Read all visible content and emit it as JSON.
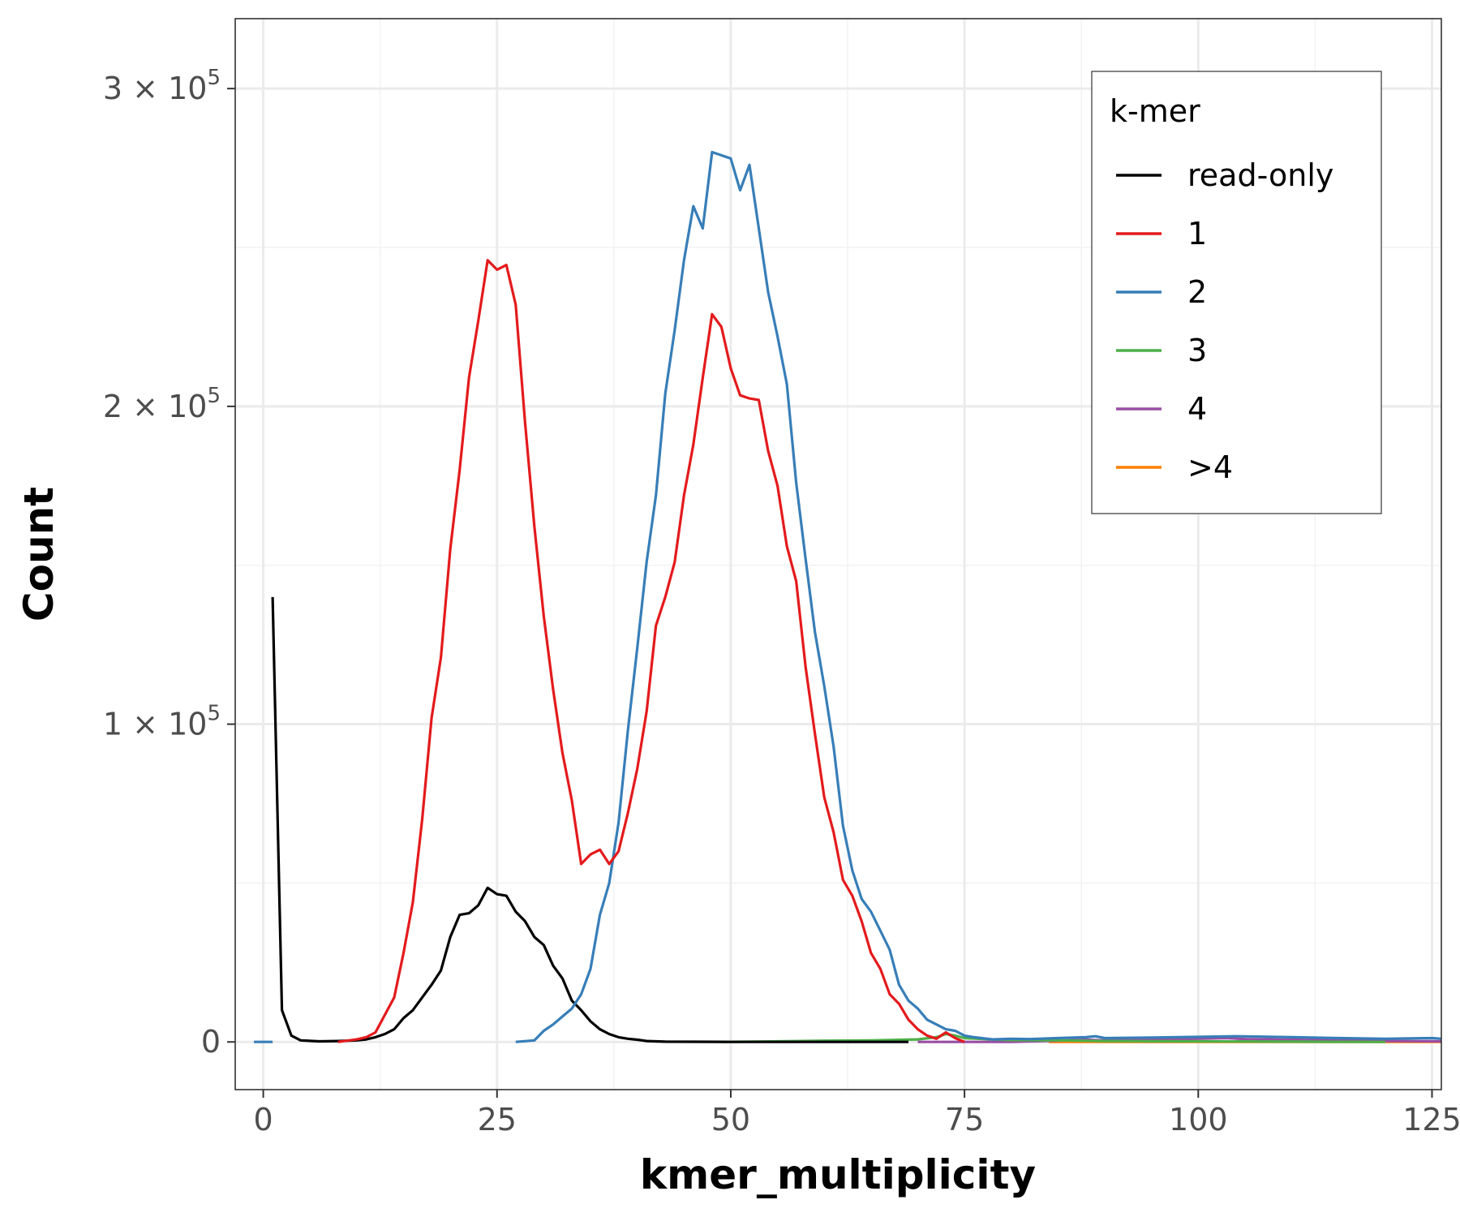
{
  "chart_data": {
    "type": "line",
    "title": "",
    "xlabel": "kmer_multiplicity",
    "ylabel": "Count",
    "xlim": [
      -3,
      126
    ],
    "ylim": [
      -15000,
      322000
    ],
    "x_ticks": [
      0,
      25,
      50,
      75,
      100,
      125
    ],
    "y_ticks": [
      {
        "value": 0,
        "mantissa": "0",
        "exponent": ""
      },
      {
        "value": 100000,
        "mantissa": "1 × 10",
        "exponent": "5"
      },
      {
        "value": 200000,
        "mantissa": "2 × 10",
        "exponent": "5"
      },
      {
        "value": 300000,
        "mantissa": "3 × 10",
        "exponent": "5"
      }
    ],
    "grid": true,
    "legend": {
      "title": "k-mer",
      "position": "top-right",
      "entries": [
        "read-only",
        "1",
        "2",
        "3",
        "4",
        ">4"
      ]
    },
    "series": [
      {
        "name": "read-only",
        "color": "#000000",
        "points": [
          [
            1,
            140000
          ],
          [
            2,
            10000
          ],
          [
            3,
            2000
          ],
          [
            4,
            500
          ],
          [
            6,
            200
          ],
          [
            8,
            300
          ],
          [
            10,
            500
          ],
          [
            11,
            800
          ],
          [
            12,
            1500
          ],
          [
            13,
            2500
          ],
          [
            14,
            4000
          ],
          [
            15,
            7500
          ],
          [
            16,
            10000
          ],
          [
            17,
            14000
          ],
          [
            18,
            18000
          ],
          [
            19,
            22500
          ],
          [
            20,
            33000
          ],
          [
            21,
            40000
          ],
          [
            22,
            40500
          ],
          [
            23,
            43000
          ],
          [
            24,
            48500
          ],
          [
            25,
            46500
          ],
          [
            26,
            46000
          ],
          [
            27,
            41000
          ],
          [
            28,
            38000
          ],
          [
            29,
            33000
          ],
          [
            30,
            30500
          ],
          [
            31,
            24000
          ],
          [
            32,
            20000
          ],
          [
            33,
            13000
          ],
          [
            34,
            10000
          ],
          [
            35,
            6500
          ],
          [
            36,
            4000
          ],
          [
            37,
            2500
          ],
          [
            38,
            1500
          ],
          [
            39,
            1000
          ],
          [
            40,
            700
          ],
          [
            41,
            300
          ],
          [
            43,
            100
          ],
          [
            50,
            0
          ],
          [
            60,
            0
          ],
          [
            69,
            0
          ]
        ]
      },
      {
        "name": "1",
        "color": "#e41a1c",
        "points": [
          [
            8,
            0
          ],
          [
            10,
            800
          ],
          [
            11,
            1500
          ],
          [
            12,
            3000
          ],
          [
            13,
            8500
          ],
          [
            14,
            14000
          ],
          [
            15,
            28000
          ],
          [
            16,
            44000
          ],
          [
            17,
            70000
          ],
          [
            18,
            102000
          ],
          [
            19,
            121000
          ],
          [
            20,
            155000
          ],
          [
            21,
            180000
          ],
          [
            22,
            209000
          ],
          [
            23,
            227000
          ],
          [
            24,
            246000
          ],
          [
            25,
            243000
          ],
          [
            26,
            244500
          ],
          [
            27,
            232000
          ],
          [
            28,
            195000
          ],
          [
            29,
            162000
          ],
          [
            30,
            134000
          ],
          [
            31,
            111000
          ],
          [
            32,
            91000
          ],
          [
            33,
            76000
          ],
          [
            34,
            56000
          ],
          [
            35,
            59000
          ],
          [
            36,
            60500
          ],
          [
            37,
            56000
          ],
          [
            38,
            60000
          ],
          [
            39,
            72000
          ],
          [
            40,
            86000
          ],
          [
            41,
            104000
          ],
          [
            42,
            131000
          ],
          [
            43,
            140000
          ],
          [
            44,
            151000
          ],
          [
            45,
            172000
          ],
          [
            46,
            188000
          ],
          [
            47,
            209000
          ],
          [
            48,
            229000
          ],
          [
            49,
            225000
          ],
          [
            50,
            212000
          ],
          [
            51,
            203500
          ],
          [
            52,
            202500
          ],
          [
            53,
            202000
          ],
          [
            54,
            186000
          ],
          [
            55,
            175000
          ],
          [
            56,
            156000
          ],
          [
            57,
            145000
          ],
          [
            58,
            118000
          ],
          [
            59,
            97000
          ],
          [
            60,
            77000
          ],
          [
            61,
            66000
          ],
          [
            62,
            51000
          ],
          [
            63,
            46000
          ],
          [
            64,
            38000
          ],
          [
            65,
            28000
          ],
          [
            66,
            23000
          ],
          [
            67,
            15000
          ],
          [
            68,
            12000
          ],
          [
            69,
            7000
          ],
          [
            70,
            4000
          ],
          [
            71,
            2000
          ],
          [
            72,
            1000
          ],
          [
            73,
            3000
          ],
          [
            74,
            1200
          ],
          [
            75,
            0
          ]
        ]
      },
      {
        "name": "2",
        "color": "#377eb8",
        "points": [
          [
            -1,
            0
          ],
          [
            1,
            0
          ]
        ],
        "points2": [
          [
            27,
            0
          ],
          [
            29,
            500
          ],
          [
            30,
            3500
          ],
          [
            31,
            5500
          ],
          [
            32,
            8000
          ],
          [
            33,
            10500
          ],
          [
            34,
            15000
          ],
          [
            35,
            23000
          ],
          [
            36,
            40000
          ],
          [
            37,
            50000
          ],
          [
            38,
            69000
          ],
          [
            39,
            98000
          ],
          [
            40,
            124000
          ],
          [
            41,
            151000
          ],
          [
            42,
            172000
          ],
          [
            43,
            204000
          ],
          [
            44,
            224000
          ],
          [
            45,
            246000
          ],
          [
            46,
            263000
          ],
          [
            47,
            256000
          ],
          [
            48,
            280000
          ],
          [
            49,
            279000
          ],
          [
            50,
            278000
          ],
          [
            51,
            268000
          ],
          [
            52,
            276000
          ],
          [
            53,
            256000
          ],
          [
            54,
            236000
          ],
          [
            55,
            222000
          ],
          [
            56,
            207000
          ],
          [
            57,
            176000
          ],
          [
            58,
            152000
          ],
          [
            59,
            129000
          ],
          [
            60,
            112000
          ],
          [
            61,
            93000
          ],
          [
            62,
            68000
          ],
          [
            63,
            54000
          ],
          [
            64,
            45000
          ],
          [
            65,
            41000
          ],
          [
            66,
            35000
          ],
          [
            67,
            29000
          ],
          [
            68,
            18000
          ],
          [
            69,
            13000
          ],
          [
            70,
            10500
          ],
          [
            71,
            7000
          ],
          [
            72,
            5500
          ],
          [
            73,
            4000
          ],
          [
            74,
            3500
          ],
          [
            75,
            2000
          ],
          [
            76,
            1500
          ],
          [
            78,
            800
          ],
          [
            80,
            1000
          ],
          [
            82,
            900
          ],
          [
            85,
            1200
          ],
          [
            88,
            1500
          ],
          [
            89,
            1800
          ],
          [
            90,
            1200
          ],
          [
            95,
            1400
          ],
          [
            100,
            1600
          ],
          [
            104,
            1800
          ],
          [
            110,
            1500
          ],
          [
            115,
            1200
          ],
          [
            120,
            1000
          ],
          [
            125,
            1200
          ],
          [
            126,
            1000
          ]
        ]
      },
      {
        "name": "3",
        "color": "#4daf4a",
        "points": [
          [
            49,
            0
          ],
          [
            55,
            200
          ],
          [
            60,
            400
          ],
          [
            65,
            500
          ],
          [
            70,
            800
          ],
          [
            72,
            1500
          ],
          [
            73,
            2500
          ],
          [
            74,
            2000
          ],
          [
            75,
            1200
          ],
          [
            78,
            800
          ],
          [
            80,
            600
          ],
          [
            85,
            500
          ],
          [
            90,
            300
          ],
          [
            100,
            200
          ],
          [
            110,
            100
          ],
          [
            120,
            0
          ]
        ]
      },
      {
        "name": "4",
        "color": "#984ea3",
        "points": [
          [
            70,
            0
          ],
          [
            80,
            0
          ],
          [
            85,
            400
          ],
          [
            88,
            700
          ],
          [
            90,
            500
          ],
          [
            95,
            800
          ],
          [
            100,
            1000
          ],
          [
            103,
            1200
          ],
          [
            105,
            900
          ],
          [
            110,
            700
          ],
          [
            115,
            500
          ],
          [
            120,
            300
          ],
          [
            126,
            200
          ]
        ]
      },
      {
        "name": ">4",
        "color": "#ff7f00",
        "points": [
          [
            84,
            0
          ],
          [
            90,
            0
          ],
          [
            100,
            0
          ],
          [
            110,
            0
          ],
          [
            120,
            0
          ],
          [
            126,
            0
          ]
        ]
      }
    ]
  }
}
